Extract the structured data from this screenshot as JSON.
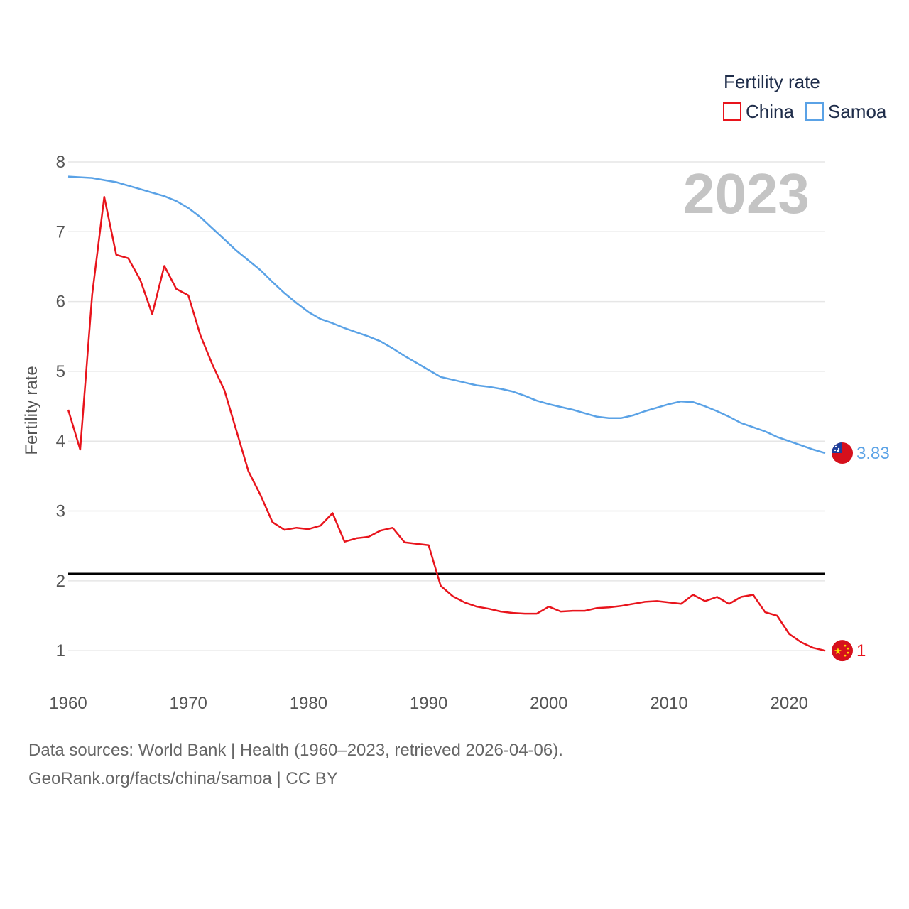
{
  "chart_data": {
    "type": "line",
    "year_label": "2023",
    "ylabel": "Fertility rate",
    "xlabel": "",
    "xlim": [
      1960,
      2023
    ],
    "ylim": [
      0.3,
      8
    ],
    "yticks": [
      1,
      2,
      3,
      4,
      5,
      6,
      7,
      8
    ],
    "xticks": [
      1960,
      1970,
      1980,
      1990,
      2000,
      2010,
      2020
    ],
    "reference_line": 2.1,
    "legend": {
      "title": "Fertility rate",
      "position": "top-right"
    },
    "x": [
      1960,
      1961,
      1962,
      1963,
      1964,
      1965,
      1966,
      1967,
      1968,
      1969,
      1970,
      1971,
      1972,
      1973,
      1974,
      1975,
      1976,
      1977,
      1978,
      1979,
      1980,
      1981,
      1982,
      1983,
      1984,
      1985,
      1986,
      1987,
      1988,
      1989,
      1990,
      1991,
      1992,
      1993,
      1994,
      1995,
      1996,
      1997,
      1998,
      1999,
      2000,
      2001,
      2002,
      2003,
      2004,
      2005,
      2006,
      2007,
      2008,
      2009,
      2010,
      2011,
      2012,
      2013,
      2014,
      2015,
      2016,
      2017,
      2018,
      2019,
      2020,
      2021,
      2022,
      2023
    ],
    "series": [
      {
        "name": "China",
        "color": "#e8141c",
        "end_label": "1",
        "flag": "china",
        "values": [
          4.45,
          3.88,
          6.1,
          7.5,
          6.67,
          6.62,
          6.31,
          5.82,
          6.51,
          6.18,
          6.09,
          5.52,
          5.1,
          4.73,
          4.15,
          3.57,
          3.23,
          2.84,
          2.73,
          2.76,
          2.74,
          2.79,
          2.97,
          2.56,
          2.61,
          2.63,
          2.72,
          2.76,
          2.55,
          2.53,
          2.51,
          1.93,
          1.78,
          1.69,
          1.63,
          1.6,
          1.56,
          1.54,
          1.53,
          1.53,
          1.63,
          1.56,
          1.57,
          1.57,
          1.61,
          1.62,
          1.64,
          1.67,
          1.7,
          1.71,
          1.69,
          1.67,
          1.8,
          1.71,
          1.77,
          1.67,
          1.77,
          1.8,
          1.55,
          1.5,
          1.24,
          1.12,
          1.04,
          1.0
        ]
      },
      {
        "name": "Samoa",
        "color": "#5aa2e6",
        "end_label": "3.83",
        "flag": "samoa",
        "values": [
          7.79,
          7.78,
          7.77,
          7.74,
          7.71,
          7.66,
          7.61,
          7.56,
          7.51,
          7.44,
          7.34,
          7.21,
          7.05,
          6.89,
          6.73,
          6.59,
          6.45,
          6.28,
          6.12,
          5.98,
          5.85,
          5.75,
          5.69,
          5.62,
          5.56,
          5.5,
          5.43,
          5.33,
          5.22,
          5.12,
          5.02,
          4.92,
          4.88,
          4.84,
          4.8,
          4.78,
          4.75,
          4.71,
          4.65,
          4.58,
          4.53,
          4.49,
          4.45,
          4.4,
          4.35,
          4.33,
          4.33,
          4.37,
          4.43,
          4.48,
          4.53,
          4.57,
          4.56,
          4.5,
          4.43,
          4.35,
          4.26,
          4.2,
          4.14,
          4.06,
          4.0,
          3.94,
          3.88,
          3.83
        ]
      }
    ]
  },
  "footer": {
    "line1": "Data sources: World Bank | Health (1960–2023, retrieved 2026-04-06).",
    "line2": "GeoRank.org/facts/china/samoa | CC BY"
  }
}
